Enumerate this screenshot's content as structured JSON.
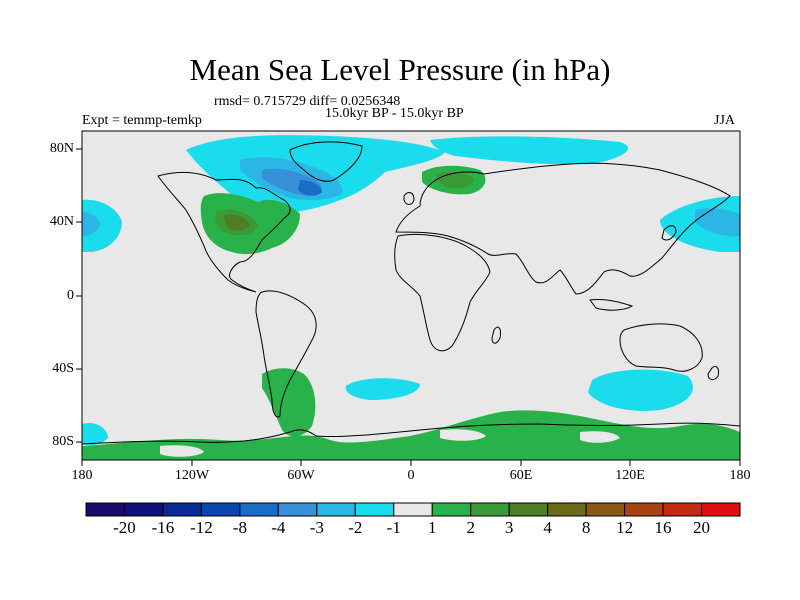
{
  "title": "Mean Sea Level Pressure (in hPa)",
  "stats": "rmsd= 0.715729 diff= 0.0256348",
  "period": "15.0kyr BP - 15.0kyr BP",
  "experiment": "Expt = temmp-temkp",
  "season": "JJA",
  "lat_ticks": [
    "80N",
    "40N",
    "0",
    "40S",
    "80S"
  ],
  "lon_ticks": [
    "180",
    "120W",
    "60W",
    "0",
    "60E",
    "120E",
    "180"
  ],
  "colorbar": {
    "colors": [
      "#1a0a6e",
      "#10107e",
      "#0a2a96",
      "#0b47b0",
      "#1a6cc8",
      "#3691d8",
      "#2cb6e6",
      "#1adcec",
      "#e8e8e8",
      "#2ab24a",
      "#3a9a36",
      "#4d7e24",
      "#6a6a18",
      "#8a5812",
      "#a84210",
      "#c42a10",
      "#dc1010"
    ],
    "labels": [
      "-20",
      "-16",
      "-12",
      "-8",
      "-4",
      "-3",
      "-2",
      "-1",
      "1",
      "2",
      "3",
      "4",
      "8",
      "12",
      "16",
      "20"
    ]
  },
  "colors": {
    "ocean_bg": "#e8e8e8",
    "coast": "#000000"
  }
}
